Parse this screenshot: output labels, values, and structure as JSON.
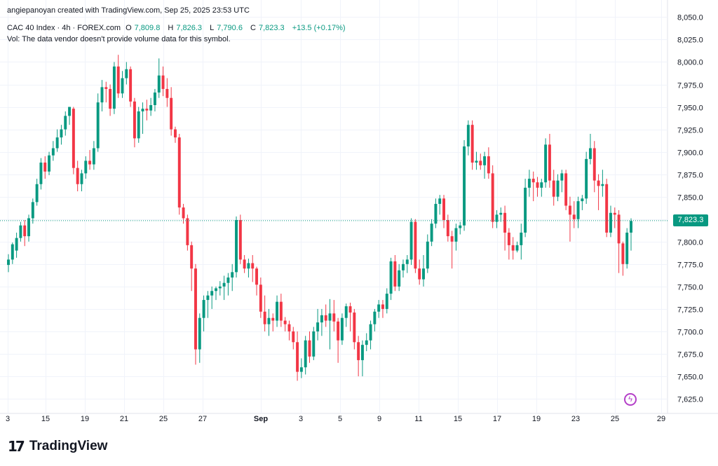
{
  "credit": "angiepanoyan created with TradingView.com, Sep 25, 2025 23:53 UTC",
  "legend": {
    "symbol": "CAC 40 Index · 4h · FOREX.com",
    "open_label": "O",
    "open": "7,809.8",
    "high_label": "H",
    "high": "7,826.3",
    "low_label": "L",
    "low": "7,790.6",
    "close_label": "C",
    "close": "7,823.3",
    "change": "+13.5 (+0.17%)"
  },
  "vol_note": "Vol: The data vendor doesn't provide volume data for this symbol.",
  "last_price_label": "7,823.3",
  "brand": "TradingView",
  "brand_icon": "tradingview-logo-icon",
  "colors": {
    "up": "#089981",
    "down": "#f23645",
    "grid": "#f0f3fa",
    "axis_text": "#131722",
    "price_line": "#089981"
  },
  "chart_data": {
    "type": "candlestick",
    "ylim": [
      7618,
      8055
    ],
    "y_ticks": [
      7625,
      7650,
      7675,
      7700,
      7725,
      7750,
      7775,
      7800,
      7825,
      7850,
      7875,
      7900,
      7925,
      7950,
      7975,
      8000,
      8025,
      8050
    ],
    "y_tick_labels": [
      "7,625.0",
      "7,650.0",
      "7,675.0",
      "7,700.0",
      "7,725.0",
      "7,750.0",
      "7,775.0",
      "7,800.0",
      "7,825.0",
      "7,850.0",
      "7,875.0",
      "7,900.0",
      "7,925.0",
      "7,950.0",
      "7,975.0",
      "8,000.0",
      "8,025.0",
      "8,050.0"
    ],
    "x_tick_labels": [
      "3",
      "15",
      "19",
      "21",
      "25",
      "27",
      "Sep",
      "3",
      "5",
      "9",
      "11",
      "15",
      "17",
      "19",
      "23",
      "25",
      "29"
    ],
    "last_price": 7823.3,
    "grid": true,
    "candles": [
      [
        7774,
        7786,
        7766,
        7780
      ],
      [
        7780,
        7799,
        7775,
        7797
      ],
      [
        7790,
        7810,
        7782,
        7804
      ],
      [
        7804,
        7822,
        7800,
        7818
      ],
      [
        7818,
        7824,
        7795,
        7806
      ],
      [
        7806,
        7830,
        7800,
        7826
      ],
      [
        7826,
        7848,
        7820,
        7844
      ],
      [
        7844,
        7870,
        7840,
        7864
      ],
      [
        7864,
        7893,
        7858,
        7888
      ],
      [
        7888,
        7895,
        7870,
        7878
      ],
      [
        7878,
        7900,
        7874,
        7896
      ],
      [
        7896,
        7912,
        7890,
        7904
      ],
      [
        7904,
        7925,
        7900,
        7916
      ],
      [
        7916,
        7930,
        7908,
        7925
      ],
      [
        7925,
        7945,
        7918,
        7940
      ],
      [
        7940,
        7950,
        7930,
        7950
      ],
      [
        7948,
        7950,
        7875,
        7882
      ],
      [
        7882,
        7890,
        7856,
        7864
      ],
      [
        7864,
        7880,
        7856,
        7876
      ],
      [
        7876,
        7895,
        7870,
        7890
      ],
      [
        7890,
        7902,
        7880,
        7886
      ],
      [
        7886,
        7912,
        7880,
        7904
      ],
      [
        7904,
        7965,
        7900,
        7955
      ],
      [
        7955,
        7980,
        7945,
        7972
      ],
      [
        7972,
        7978,
        7955,
        7970
      ],
      [
        7970,
        7975,
        7940,
        7948
      ],
      [
        7948,
        8000,
        7942,
        7995
      ],
      [
        7995,
        8008,
        7960,
        7965
      ],
      [
        7965,
        7990,
        7960,
        7982
      ],
      [
        7982,
        8000,
        7975,
        7992
      ],
      [
        7992,
        7995,
        7950,
        7956
      ],
      [
        7956,
        7960,
        7905,
        7915
      ],
      [
        7915,
        7950,
        7910,
        7945
      ],
      [
        7945,
        7955,
        7920,
        7948
      ],
      [
        7948,
        7958,
        7935,
        7946
      ],
      [
        7946,
        7960,
        7940,
        7952
      ],
      [
        7952,
        7970,
        7945,
        7966
      ],
      [
        7966,
        8004,
        7960,
        7985
      ],
      [
        7985,
        7995,
        7962,
        7970
      ],
      [
        7970,
        7982,
        7950,
        7960
      ],
      [
        7960,
        7972,
        7918,
        7925
      ],
      [
        7925,
        7928,
        7910,
        7916
      ],
      [
        7916,
        7920,
        7830,
        7838
      ],
      [
        7838,
        7842,
        7820,
        7826
      ],
      [
        7826,
        7830,
        7790,
        7796
      ],
      [
        7796,
        7800,
        7745,
        7770
      ],
      [
        7770,
        7775,
        7663,
        7680
      ],
      [
        7680,
        7720,
        7665,
        7715
      ],
      [
        7715,
        7740,
        7700,
        7735
      ],
      [
        7735,
        7745,
        7715,
        7740
      ],
      [
        7740,
        7750,
        7725,
        7745
      ],
      [
        7745,
        7750,
        7735,
        7748
      ],
      [
        7748,
        7756,
        7740,
        7750
      ],
      [
        7750,
        7762,
        7735,
        7754
      ],
      [
        7754,
        7765,
        7740,
        7760
      ],
      [
        7760,
        7775,
        7745,
        7766
      ],
      [
        7766,
        7828,
        7760,
        7824
      ],
      [
        7824,
        7830,
        7775,
        7780
      ],
      [
        7780,
        7785,
        7765,
        7770
      ],
      [
        7770,
        7781,
        7760,
        7776
      ],
      [
        7776,
        7785,
        7755,
        7770
      ],
      [
        7770,
        7772,
        7740,
        7752
      ],
      [
        7752,
        7760,
        7715,
        7722
      ],
      [
        7722,
        7740,
        7700,
        7708
      ],
      [
        7708,
        7725,
        7695,
        7715
      ],
      [
        7715,
        7720,
        7700,
        7712
      ],
      [
        7712,
        7740,
        7705,
        7733
      ],
      [
        7733,
        7742,
        7705,
        7712
      ],
      [
        7712,
        7716,
        7700,
        7708
      ],
      [
        7708,
        7712,
        7690,
        7700
      ],
      [
        7700,
        7705,
        7680,
        7688
      ],
      [
        7688,
        7700,
        7645,
        7655
      ],
      [
        7655,
        7670,
        7648,
        7660
      ],
      [
        7660,
        7695,
        7652,
        7690
      ],
      [
        7690,
        7700,
        7665,
        7672
      ],
      [
        7672,
        7705,
        7668,
        7700
      ],
      [
        7700,
        7725,
        7690,
        7710
      ],
      [
        7710,
        7725,
        7695,
        7718
      ],
      [
        7718,
        7730,
        7705,
        7712
      ],
      [
        7712,
        7736,
        7680,
        7720
      ],
      [
        7720,
        7735,
        7700,
        7711
      ],
      [
        7711,
        7715,
        7665,
        7690
      ],
      [
        7690,
        7720,
        7685,
        7715
      ],
      [
        7715,
        7731,
        7705,
        7728
      ],
      [
        7728,
        7732,
        7700,
        7721
      ],
      [
        7721,
        7725,
        7680,
        7688
      ],
      [
        7688,
        7695,
        7650,
        7668
      ],
      [
        7668,
        7690,
        7650,
        7685
      ],
      [
        7685,
        7698,
        7678,
        7690
      ],
      [
        7690,
        7712,
        7680,
        7708
      ],
      [
        7708,
        7725,
        7700,
        7722
      ],
      [
        7722,
        7735,
        7715,
        7730
      ],
      [
        7730,
        7735,
        7715,
        7725
      ],
      [
        7725,
        7748,
        7720,
        7742
      ],
      [
        7742,
        7782,
        7735,
        7778
      ],
      [
        7778,
        7785,
        7745,
        7750
      ],
      [
        7750,
        7775,
        7745,
        7768
      ],
      [
        7768,
        7780,
        7760,
        7775
      ],
      [
        7775,
        7785,
        7765,
        7780
      ],
      [
        7780,
        7826,
        7774,
        7822
      ],
      [
        7822,
        7825,
        7765,
        7770
      ],
      [
        7770,
        7780,
        7752,
        7758
      ],
      [
        7758,
        7785,
        7750,
        7770
      ],
      [
        7770,
        7808,
        7765,
        7800
      ],
      [
        7800,
        7825,
        7795,
        7820
      ],
      [
        7820,
        7848,
        7815,
        7842
      ],
      [
        7842,
        7852,
        7830,
        7848
      ],
      [
        7848,
        7852,
        7815,
        7824
      ],
      [
        7824,
        7830,
        7800,
        7806
      ],
      [
        7806,
        7812,
        7770,
        7800
      ],
      [
        7800,
        7820,
        7790,
        7815
      ],
      [
        7815,
        7822,
        7808,
        7818
      ],
      [
        7818,
        7913,
        7812,
        7906
      ],
      [
        7906,
        7935,
        7896,
        7930
      ],
      [
        7930,
        7935,
        7880,
        7888
      ],
      [
        7888,
        7900,
        7880,
        7890
      ],
      [
        7890,
        7898,
        7880,
        7885
      ],
      [
        7885,
        7900,
        7870,
        7895
      ],
      [
        7895,
        7905,
        7870,
        7876
      ],
      [
        7876,
        7885,
        7815,
        7822
      ],
      [
        7822,
        7835,
        7815,
        7830
      ],
      [
        7830,
        7838,
        7822,
        7832
      ],
      [
        7832,
        7840,
        7790,
        7810
      ],
      [
        7810,
        7815,
        7780,
        7796
      ],
      [
        7796,
        7805,
        7780,
        7790
      ],
      [
        7790,
        7800,
        7788,
        7796
      ],
      [
        7796,
        7820,
        7780,
        7810
      ],
      [
        7810,
        7870,
        7805,
        7860
      ],
      [
        7860,
        7880,
        7850,
        7870
      ],
      [
        7870,
        7878,
        7845,
        7866
      ],
      [
        7866,
        7872,
        7850,
        7860
      ],
      [
        7860,
        7870,
        7850,
        7866
      ],
      [
        7866,
        7915,
        7860,
        7908
      ],
      [
        7908,
        7920,
        7860,
        7868
      ],
      [
        7868,
        7880,
        7840,
        7850
      ],
      [
        7850,
        7875,
        7845,
        7868
      ],
      [
        7868,
        7880,
        7855,
        7876
      ],
      [
        7876,
        7880,
        7835,
        7840
      ],
      [
        7840,
        7850,
        7800,
        7830
      ],
      [
        7830,
        7845,
        7815,
        7825
      ],
      [
        7825,
        7850,
        7815,
        7845
      ],
      [
        7845,
        7852,
        7835,
        7848
      ],
      [
        7848,
        7900,
        7842,
        7892
      ],
      [
        7892,
        7920,
        7886,
        7904
      ],
      [
        7904,
        7912,
        7855,
        7868
      ],
      [
        7868,
        7875,
        7835,
        7862
      ],
      [
        7862,
        7880,
        7850,
        7864
      ],
      [
        7864,
        7870,
        7805,
        7810
      ],
      [
        7810,
        7840,
        7805,
        7832
      ],
      [
        7832,
        7838,
        7815,
        7830
      ],
      [
        7830,
        7835,
        7765,
        7798
      ],
      [
        7798,
        7800,
        7762,
        7775
      ],
      [
        7775,
        7815,
        7770,
        7810
      ],
      [
        7810,
        7826,
        7790,
        7823
      ]
    ]
  }
}
